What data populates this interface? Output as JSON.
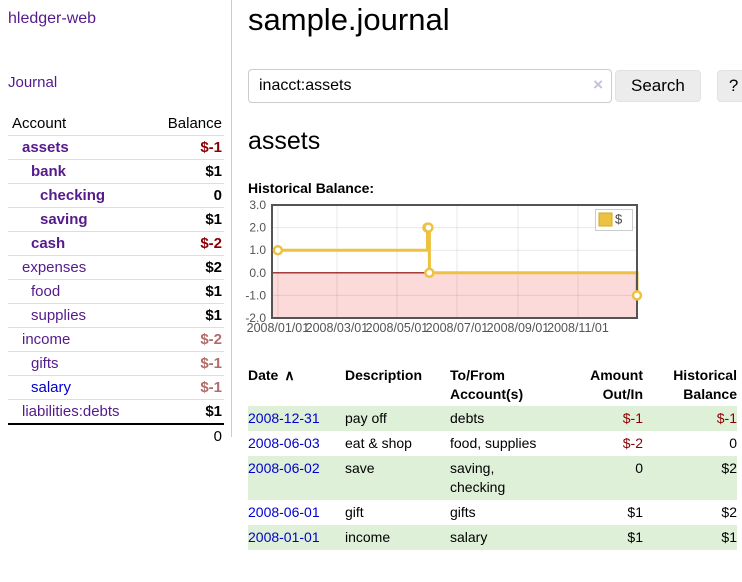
{
  "app": {
    "title": "hledger-web"
  },
  "sidebar": {
    "journal_label": "Journal",
    "accounts_table": {
      "headers": {
        "account": "Account",
        "balance": "Balance"
      },
      "rows": [
        {
          "account": "assets",
          "balance": "$-1",
          "indent": 0,
          "bold": true,
          "negative": true,
          "muted": false,
          "unvisited": false
        },
        {
          "account": "bank",
          "balance": "$1",
          "indent": 1,
          "bold": true,
          "negative": false,
          "muted": false,
          "unvisited": false
        },
        {
          "account": "checking",
          "balance": "0",
          "indent": 2,
          "bold": true,
          "negative": false,
          "muted": false,
          "unvisited": false
        },
        {
          "account": "saving",
          "balance": "$1",
          "indent": 2,
          "bold": true,
          "negative": false,
          "muted": false,
          "unvisited": false
        },
        {
          "account": "cash",
          "balance": "$-2",
          "indent": 1,
          "bold": true,
          "negative": true,
          "muted": false,
          "unvisited": false
        },
        {
          "account": "expenses",
          "balance": "$2",
          "indent": 0,
          "bold": false,
          "negative": false,
          "muted": false,
          "unvisited": false
        },
        {
          "account": "food",
          "balance": "$1",
          "indent": 1,
          "bold": false,
          "negative": false,
          "muted": false,
          "unvisited": false
        },
        {
          "account": "supplies",
          "balance": "$1",
          "indent": 1,
          "bold": false,
          "negative": false,
          "muted": false,
          "unvisited": false
        },
        {
          "account": "income",
          "balance": "$-2",
          "indent": 0,
          "bold": false,
          "negative": true,
          "muted": true,
          "unvisited": false
        },
        {
          "account": "gifts",
          "balance": "$-1",
          "indent": 1,
          "bold": false,
          "negative": true,
          "muted": true,
          "unvisited": false
        },
        {
          "account": "salary",
          "balance": "$-1",
          "indent": 1,
          "bold": false,
          "negative": true,
          "muted": true,
          "unvisited": true
        },
        {
          "account": "liabilities:debts",
          "balance": "$1",
          "indent": 0,
          "bold": false,
          "negative": false,
          "muted": false,
          "unvisited": false
        }
      ],
      "total": "0"
    }
  },
  "header": {
    "title": "sample.journal"
  },
  "search": {
    "value": "inacct:assets",
    "clear_icon": "×",
    "button_label": "Search",
    "help_label": "?"
  },
  "account_page": {
    "title": "assets",
    "chart_label": "Historical Balance:"
  },
  "chart_data": {
    "type": "line",
    "step": true,
    "title": "Historical Balance",
    "series": [
      {
        "name": "$",
        "color": "#edc240",
        "points": [
          {
            "date": "2008-01-01",
            "value": 1
          },
          {
            "date": "2008-06-01",
            "value": 2
          },
          {
            "date": "2008-06-02",
            "value": 2
          },
          {
            "date": "2008-06-03",
            "value": 0
          },
          {
            "date": "2008-12-31",
            "value": -1
          }
        ]
      }
    ],
    "xlim": [
      "2007-12-26",
      "2008-12-31"
    ],
    "ylim": [
      -2,
      3
    ],
    "x_ticks": [
      {
        "date": "2008-01-01",
        "label": "2008/01/01"
      },
      {
        "date": "2008-03-01",
        "label": "2008/03/01"
      },
      {
        "date": "2008-05-01",
        "label": "2008/05/01"
      },
      {
        "date": "2008-07-01",
        "label": "2008/07/01"
      },
      {
        "date": "2008-09-01",
        "label": "2008/09/01"
      },
      {
        "date": "2008-11-01",
        "label": "2008/11/01"
      }
    ],
    "y_ticks": [
      {
        "value": 3,
        "label": "3.0"
      },
      {
        "value": 2,
        "label": "2.0"
      },
      {
        "value": 1,
        "label": "1.0"
      },
      {
        "value": 0,
        "label": "0.0"
      },
      {
        "value": -1,
        "label": "-1.0"
      },
      {
        "value": -2,
        "label": "-2.0"
      }
    ],
    "legend": {
      "label": "$",
      "position": "top-right"
    },
    "colors": {
      "negative_region": "#fcdada",
      "zero_line": "#8b0000",
      "border": "#545454",
      "axis_text": "#545454",
      "grid": "rgba(0,0,0,0.09)"
    }
  },
  "register_table": {
    "sort_icon": "∧",
    "headers": {
      "date": "Date",
      "description": "Description",
      "accounts": "To/From Account(s)",
      "amount": "Amount Out/In",
      "balance": "Historical Balance"
    },
    "rows": [
      {
        "date": "2008-12-31",
        "description": "pay off",
        "accounts": "debts",
        "amount": "$-1",
        "amount_negative": true,
        "balance": "$-1",
        "balance_negative": true
      },
      {
        "date": "2008-06-03",
        "description": "eat & shop",
        "accounts": "food, supplies",
        "amount": "$-2",
        "amount_negative": true,
        "balance": "0",
        "balance_negative": false
      },
      {
        "date": "2008-06-02",
        "description": "save",
        "accounts": "saving, checking",
        "amount": "0",
        "amount_negative": false,
        "balance": "$2",
        "balance_negative": false
      },
      {
        "date": "2008-06-01",
        "description": "gift",
        "accounts": "gifts",
        "amount": "$1",
        "amount_negative": false,
        "balance": "$2",
        "balance_negative": false
      },
      {
        "date": "2008-01-01",
        "description": "income",
        "accounts": "salary",
        "amount": "$1",
        "amount_negative": false,
        "balance": "$1",
        "balance_negative": false
      }
    ]
  }
}
